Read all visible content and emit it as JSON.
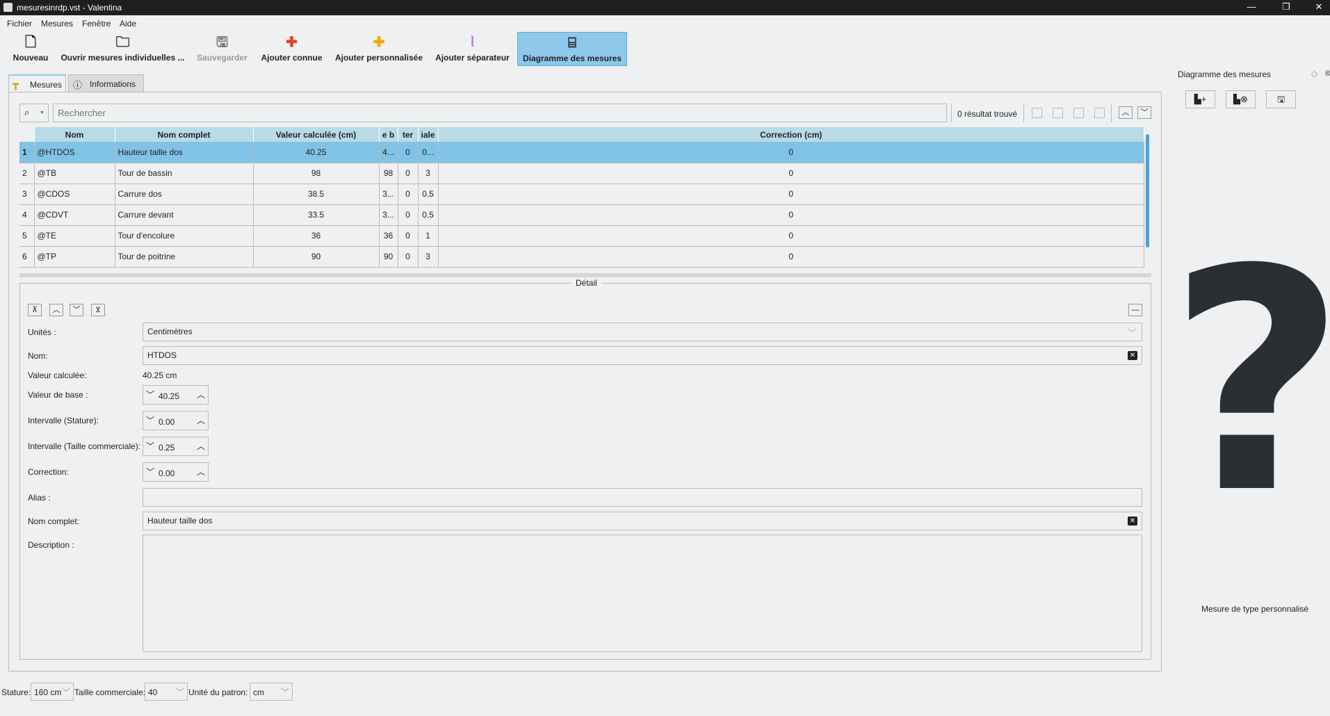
{
  "window": {
    "title": "mesuresinrdp.vst - Valentina",
    "controls": [
      "—",
      "❐",
      "✕"
    ]
  },
  "menu": [
    "Fichier",
    "Mesures",
    "Fenêtre",
    "Aide"
  ],
  "toolbar": [
    {
      "label": "Nouveau",
      "icon": "new-file-icon",
      "glyph": "🗋",
      "color": "#222"
    },
    {
      "label": "Ouvrir mesures individuelles ...",
      "icon": "folder-icon",
      "glyph": "🗀",
      "color": "#222"
    },
    {
      "label": "Sauvegarder",
      "icon": "save-icon",
      "glyph": "🖫",
      "color": "#777",
      "disabled": true
    },
    {
      "label": "Ajouter connue",
      "icon": "plus-red-icon",
      "glyph": "✚",
      "color": "#e8401c"
    },
    {
      "label": "Ajouter personnalisée",
      "icon": "plus-orange-icon",
      "glyph": "✚",
      "color": "#f6a800"
    },
    {
      "label": "Ajouter séparateur",
      "icon": "separator-icon",
      "glyph": "⦚",
      "color": "#b070e0"
    },
    {
      "label": "Diagramme des mesures",
      "icon": "diagram-icon",
      "glyph": "⌸",
      "color": "#222",
      "active": true
    }
  ],
  "tabs": [
    {
      "label": "Mesures",
      "icon": "ruler-icon"
    },
    {
      "label": "Informations",
      "icon": "info-icon"
    }
  ],
  "search": {
    "placeholder": "Rechercher",
    "results": "0 résultat trouvé"
  },
  "table": {
    "columns": [
      "",
      "Nom",
      "Nom complet",
      "Valeur calculée (cm)",
      "e b",
      "ter",
      "iale",
      "Correction (cm)"
    ],
    "rows": [
      [
        "1",
        "@HTDOS",
        "Hauteur taille dos",
        "40.25",
        "4...",
        "0",
        "0...",
        "0"
      ],
      [
        "2",
        "@TB",
        "Tour de bassin",
        "98",
        "98",
        "0",
        "3",
        "0"
      ],
      [
        "3",
        "@CDOS",
        "Carrure dos",
        "38.5",
        "3...",
        "0",
        "0.5",
        "0"
      ],
      [
        "4",
        "@CDVT",
        "Carrure devant",
        "33.5",
        "3...",
        "0",
        "0.5",
        "0"
      ],
      [
        "5",
        "@TE",
        "Tour d'encolure",
        "36",
        "36",
        "0",
        "1",
        "0"
      ],
      [
        "6",
        "@TP",
        "Tour de poitrine",
        "90",
        "90",
        "0",
        "3",
        "0"
      ]
    ],
    "selected_row": 0
  },
  "detail": {
    "title": "Détail",
    "units_label": "Unités :",
    "units": "Centimètres",
    "name_label": "Nom:",
    "name": "HTDOS",
    "calc_label": "Valeur calculée:",
    "calc": "40.25 cm",
    "base_label": "Valeur de base :",
    "base": "40.25",
    "stature_label": "Intervalle (Stature):",
    "stature": "0.00",
    "size_label": "Intervalle (Taille commerciale):",
    "size": "0.25",
    "corr_label": "Correction:",
    "corr": "0.00",
    "alias_label": "Alias :",
    "alias": "",
    "full_label": "Nom complet:",
    "full": "Hauteur taille dos",
    "desc_label": "Description :",
    "desc": ""
  },
  "bottom": {
    "stature_label": "Stature:",
    "stature": "160 cm",
    "size_label": "Taille commerciale:",
    "size": "40",
    "unit_label": "Unité du patron:",
    "unit": "cm"
  },
  "right": {
    "title": "Diagramme des mesures",
    "placeholder": "?",
    "caption": "Mesure de type personnalisé"
  }
}
